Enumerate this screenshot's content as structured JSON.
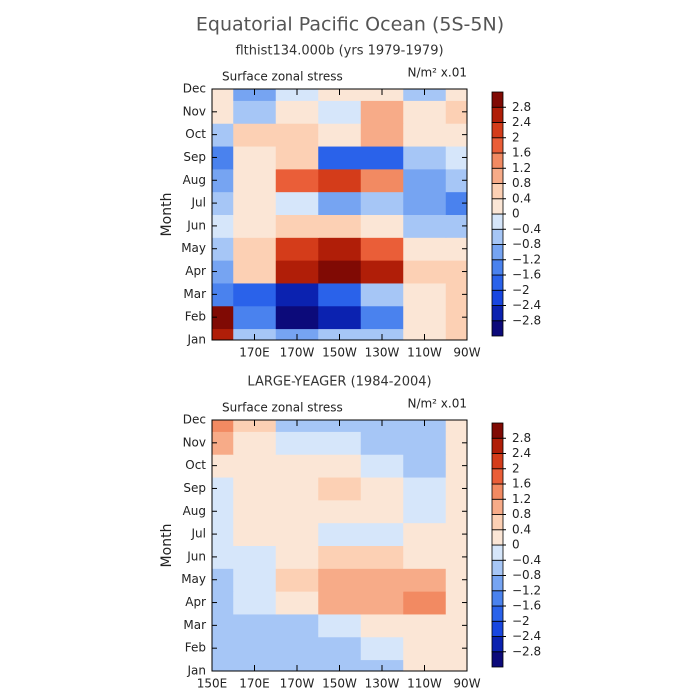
{
  "title": "Equatorial Pacific Ocean (5S-5N)",
  "chart_data": [
    {
      "type": "heatmap",
      "title": "flthist134.000b (yrs 1979-1979)",
      "subtitle": "Surface zonal stress",
      "units": "N/m² x.01",
      "ylabel": "Month",
      "x": [
        150,
        170,
        190,
        210,
        230,
        250,
        270
      ],
      "xlim": [
        150,
        270
      ],
      "xticks": [
        {
          "value": 170,
          "label": "170E"
        },
        {
          "value": 190,
          "label": "170W"
        },
        {
          "value": 210,
          "label": "150W"
        },
        {
          "value": 230,
          "label": "130W"
        },
        {
          "value": 250,
          "label": "110W"
        },
        {
          "value": 270,
          "label": "90W"
        }
      ],
      "y": [
        "Jan",
        "Feb",
        "Mar",
        "Apr",
        "May",
        "Jun",
        "Jul",
        "Aug",
        "Sep",
        "Oct",
        "Nov",
        "Dec"
      ],
      "z": [
        [
          2.6,
          -0.5,
          -1.0,
          -0.8,
          -0.6,
          0.3,
          0.5
        ],
        [
          2.8,
          -1.5,
          -3.0,
          -2.5,
          -1.5,
          0.2,
          0.5
        ],
        [
          -1.5,
          -2.0,
          -2.6,
          -2.0,
          -0.6,
          0.3,
          0.6
        ],
        [
          -1.2,
          0.6,
          2.4,
          2.8,
          2.4,
          0.4,
          0.5
        ],
        [
          -0.8,
          0.4,
          2.2,
          2.4,
          1.6,
          0.3,
          0.2
        ],
        [
          -0.4,
          0.2,
          0.6,
          0.6,
          0.2,
          -0.8,
          -0.6
        ],
        [
          -0.8,
          0.0,
          -0.4,
          -1.0,
          -0.6,
          -1.2,
          -1.4
        ],
        [
          -1.2,
          0.3,
          1.8,
          2.0,
          1.4,
          -1.0,
          -0.8
        ],
        [
          -1.6,
          0.3,
          0.6,
          -1.8,
          -2.0,
          -0.8,
          -0.3
        ],
        [
          -0.6,
          0.4,
          0.4,
          0.0,
          0.8,
          0.2,
          0.2
        ],
        [
          0.2,
          -0.6,
          0.3,
          -0.2,
          1.0,
          0.3,
          0.4
        ],
        [
          0.3,
          -1.0,
          -0.3,
          0.2,
          0.2,
          -0.8,
          0.2
        ]
      ],
      "levels": [
        {
          "value": -2.8,
          "label": "−2.8"
        },
        {
          "value": -2.4,
          "label": "−2.4"
        },
        {
          "value": -2,
          "label": "−2"
        },
        {
          "value": -1.6,
          "label": "−1.6"
        },
        {
          "value": -1.2,
          "label": "−1.2"
        },
        {
          "value": -0.8,
          "label": "−0.8"
        },
        {
          "value": -0.4,
          "label": "−0.4"
        },
        0,
        0.4,
        0.8,
        1.2,
        1.6,
        2,
        2.4,
        2.8
      ],
      "colors": [
        "#0c0a7a",
        "#0b22b0",
        "#1846e0",
        "#2a62ea",
        "#4a82ee",
        "#76a4f2",
        "#a6c6f6",
        "#d6e6fa",
        "#fbe6d6",
        "#fcd0b4",
        "#f7ab88",
        "#f28a62",
        "#ea5e38",
        "#d43c1a",
        "#b01e08",
        "#800a04"
      ]
    },
    {
      "type": "heatmap",
      "title": "LARGE-YEAGER (1984-2004)",
      "subtitle": "Surface zonal stress",
      "units": "N/m² x.01",
      "ylabel": "Month",
      "x": [
        150,
        170,
        190,
        210,
        230,
        250,
        270
      ],
      "xlim": [
        150,
        270
      ],
      "xticks": [
        {
          "value": 150,
          "label": "150E"
        },
        {
          "value": 170,
          "label": "170E"
        },
        {
          "value": 190,
          "label": "170W"
        },
        {
          "value": 210,
          "label": "150W"
        },
        {
          "value": 230,
          "label": "130W"
        },
        {
          "value": 250,
          "label": "110W"
        },
        {
          "value": 270,
          "label": "90W"
        }
      ],
      "y": [
        "Jan",
        "Feb",
        "Mar",
        "Apr",
        "May",
        "Jun",
        "Jul",
        "Aug",
        "Sep",
        "Oct",
        "Nov",
        "Dec"
      ],
      "z": [
        [
          -0.6,
          -0.6,
          -0.6,
          -0.8,
          -0.6,
          0.1,
          0.1
        ],
        [
          -0.6,
          -0.8,
          -0.5,
          -0.6,
          -0.3,
          0.1,
          0.1
        ],
        [
          -0.8,
          -0.8,
          -0.6,
          -0.2,
          0.1,
          0.2,
          0.2
        ],
        [
          -0.6,
          -0.4,
          0.3,
          0.8,
          1.0,
          1.2,
          0.3
        ],
        [
          -0.5,
          -0.2,
          0.6,
          0.9,
          1.1,
          0.9,
          0.2
        ],
        [
          -0.4,
          -0.1,
          0.2,
          0.4,
          0.4,
          0.3,
          0.1
        ],
        [
          -0.3,
          0.1,
          0.1,
          -0.2,
          -0.2,
          0.1,
          0.1
        ],
        [
          -0.2,
          0.2,
          0.2,
          0.2,
          0.0,
          -0.2,
          0.1
        ],
        [
          -0.4,
          0.2,
          0.3,
          0.4,
          0.1,
          -0.4,
          0.0
        ],
        [
          0.2,
          0.2,
          0.3,
          0.2,
          -0.3,
          -0.6,
          0.0
        ],
        [
          0.8,
          0.3,
          -0.1,
          -0.4,
          -0.6,
          -0.6,
          0.0
        ],
        [
          1.2,
          0.4,
          -0.5,
          -0.6,
          -0.8,
          -0.8,
          0.0
        ]
      ],
      "levels": [
        {
          "value": -2.8,
          "label": "−2.8"
        },
        {
          "value": -2.4,
          "label": "−2.4"
        },
        {
          "value": -2,
          "label": "−2"
        },
        {
          "value": -1.6,
          "label": "−1.6"
        },
        {
          "value": -1.2,
          "label": "−1.2"
        },
        {
          "value": -0.8,
          "label": "−0.8"
        },
        {
          "value": -0.4,
          "label": "−0.4"
        },
        0,
        0.4,
        0.8,
        1.2,
        1.6,
        2,
        2.4,
        2.8
      ],
      "colors": [
        "#0c0a7a",
        "#0b22b0",
        "#1846e0",
        "#2a62ea",
        "#4a82ee",
        "#76a4f2",
        "#a6c6f6",
        "#d6e6fa",
        "#fbe6d6",
        "#fcd0b4",
        "#f7ab88",
        "#f28a62",
        "#ea5e38",
        "#d43c1a",
        "#b01e08",
        "#800a04"
      ]
    }
  ]
}
